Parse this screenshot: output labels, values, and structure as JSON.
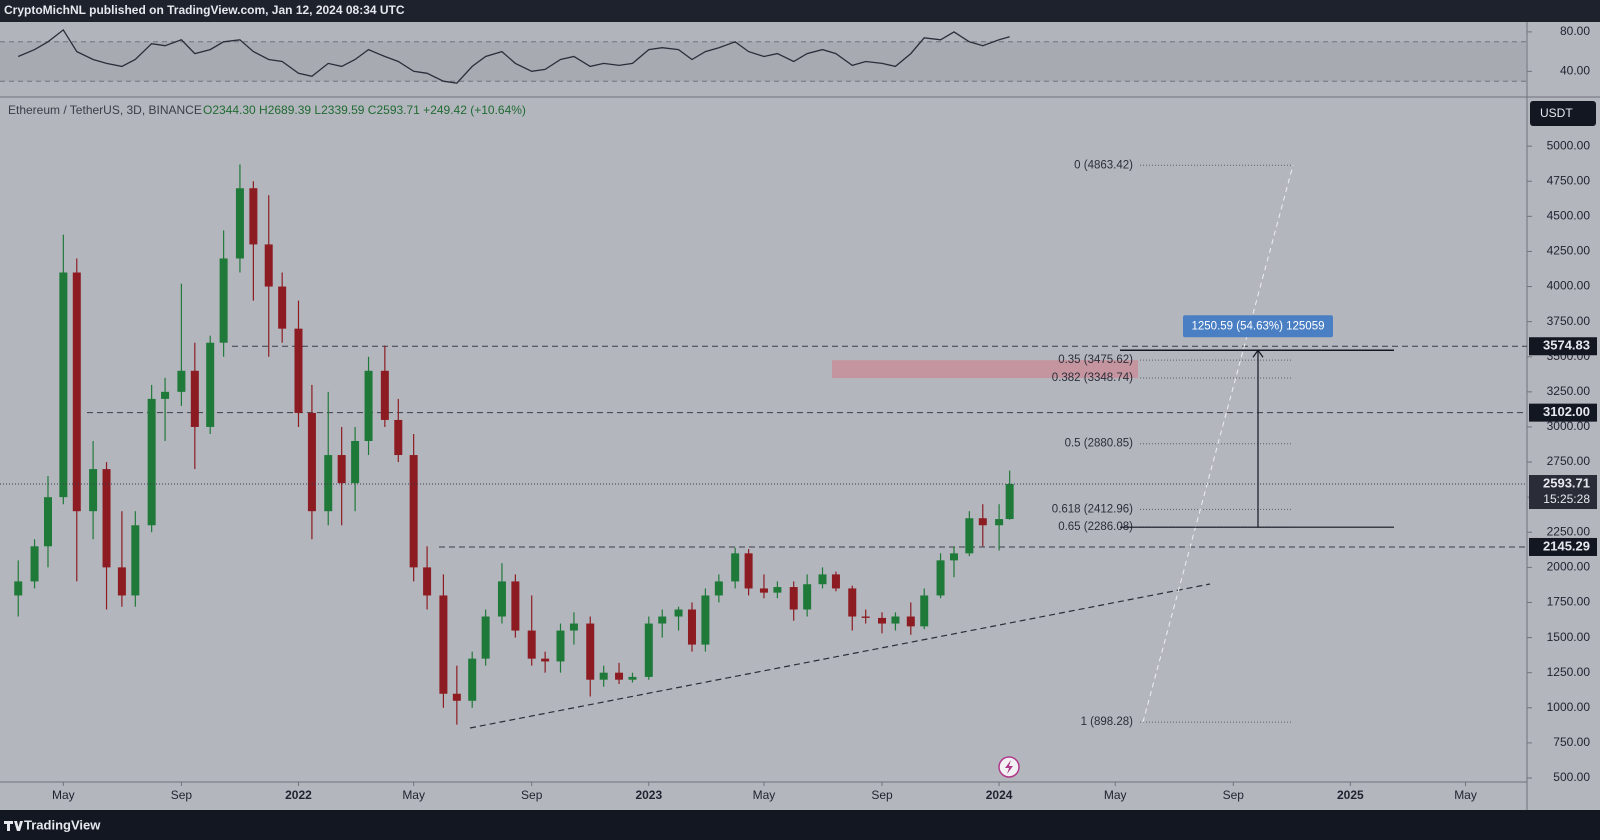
{
  "header": {
    "publisher": "CryptoMichNL published on TradingView.com, Jan 12, 2024 08:34 UTC",
    "symbol": "Ethereum / TetherUS, 3D, BINANCE",
    "ohlc_text": "O2344.30 H2689.39 L2339.59 C2593.71 +249.42 (+10.64%)",
    "currency": "USDT"
  },
  "footer": {
    "brand": "TradingView"
  },
  "chart_data": [
    {
      "type": "candlestick",
      "up_color": "#1f7a3a",
      "down_color": "#8c1c22",
      "x": [
        "2021-03-15",
        "2021-04-01",
        "2021-04-15",
        "2021-05-01",
        "2021-05-15",
        "2021-06-01",
        "2021-06-15",
        "2021-07-01",
        "2021-07-15",
        "2021-08-01",
        "2021-08-15",
        "2021-09-01",
        "2021-09-15",
        "2021-10-01",
        "2021-10-15",
        "2021-11-01",
        "2021-11-15",
        "2021-12-01",
        "2021-12-15",
        "2022-01-01",
        "2022-01-15",
        "2022-02-01",
        "2022-02-15",
        "2022-03-01",
        "2022-03-15",
        "2022-04-01",
        "2022-04-15",
        "2022-05-01",
        "2022-05-15",
        "2022-06-01",
        "2022-06-15",
        "2022-07-01",
        "2022-07-15",
        "2022-08-01",
        "2022-08-15",
        "2022-09-01",
        "2022-09-15",
        "2022-10-01",
        "2022-10-15",
        "2022-11-01",
        "2022-11-15",
        "2022-12-01",
        "2022-12-15",
        "2023-01-01",
        "2023-01-15",
        "2023-02-01",
        "2023-02-15",
        "2023-03-01",
        "2023-03-15",
        "2023-04-01",
        "2023-04-15",
        "2023-05-01",
        "2023-05-15",
        "2023-06-01",
        "2023-06-15",
        "2023-07-01",
        "2023-07-15",
        "2023-08-01",
        "2023-08-15",
        "2023-09-01",
        "2023-09-15",
        "2023-10-01",
        "2023-10-15",
        "2023-11-01",
        "2023-11-15",
        "2023-12-01",
        "2023-12-15",
        "2024-01-01",
        "2024-01-12"
      ],
      "open": [
        1800,
        1900,
        2150,
        2500,
        4100,
        2400,
        2700,
        2000,
        1800,
        2300,
        3200,
        3250,
        3400,
        3000,
        3600,
        4200,
        4700,
        4300,
        4000,
        3700,
        3100,
        2400,
        2800,
        2600,
        2900,
        3400,
        3050,
        2800,
        2000,
        1800,
        1100,
        1050,
        1350,
        1650,
        1900,
        1550,
        1350,
        1330,
        1550,
        1600,
        1200,
        1250,
        1200,
        1220,
        1600,
        1650,
        1700,
        1450,
        1800,
        1900,
        2100,
        1850,
        1820,
        1860,
        1700,
        1880,
        1950,
        1850,
        1650,
        1640,
        1600,
        1650,
        1580,
        1800,
        2050,
        2100,
        2350,
        2300,
        2344.3
      ],
      "high": [
        2050,
        2200,
        2650,
        4370,
        4200,
        2900,
        2750,
        2400,
        2400,
        3300,
        3350,
        4020,
        3600,
        3650,
        4400,
        4870,
        4750,
        4650,
        4100,
        3900,
        3300,
        3250,
        3000,
        3000,
        3500,
        3580,
        3200,
        2950,
        2150,
        1950,
        1300,
        1400,
        1700,
        2030,
        1950,
        1800,
        1400,
        1600,
        1680,
        1650,
        1300,
        1320,
        1250,
        1650,
        1700,
        1720,
        1750,
        1850,
        1950,
        2140,
        2130,
        1950,
        1900,
        1900,
        1950,
        2000,
        1970,
        1870,
        1700,
        1680,
        1680,
        1750,
        1850,
        2100,
        2150,
        2400,
        2450,
        2450,
        2689.39
      ],
      "low": [
        1650,
        1850,
        2000,
        2450,
        1900,
        2200,
        1700,
        1720,
        1720,
        2250,
        2900,
        3150,
        2700,
        2950,
        3500,
        4100,
        3900,
        3500,
        3600,
        3000,
        2200,
        2300,
        2300,
        2400,
        2800,
        3000,
        2750,
        1900,
        1700,
        1000,
        880,
        1000,
        1300,
        1600,
        1500,
        1300,
        1250,
        1250,
        1450,
        1080,
        1150,
        1170,
        1180,
        1200,
        1500,
        1550,
        1400,
        1400,
        1750,
        1850,
        1800,
        1780,
        1780,
        1620,
        1650,
        1850,
        1830,
        1550,
        1600,
        1530,
        1550,
        1520,
        1560,
        1780,
        1930,
        2080,
        2150,
        2120,
        2339.59
      ],
      "close": [
        1900,
        2150,
        2500,
        4100,
        2400,
        2700,
        2000,
        1800,
        2300,
        3200,
        3250,
        3400,
        3000,
        3600,
        4200,
        4700,
        4300,
        4000,
        3700,
        3100,
        2400,
        2800,
        2600,
        2900,
        3400,
        3050,
        2800,
        2000,
        1800,
        1100,
        1050,
        1350,
        1650,
        1900,
        1550,
        1350,
        1330,
        1550,
        1600,
        1200,
        1250,
        1200,
        1220,
        1600,
        1650,
        1700,
        1450,
        1800,
        1900,
        2100,
        1850,
        1820,
        1860,
        1700,
        1880,
        1950,
        1850,
        1650,
        1640,
        1600,
        1650,
        1580,
        1800,
        2050,
        2100,
        2350,
        2300,
        2344,
        2593.71
      ],
      "xlim": [
        "2021-02-24",
        "2025-07-03"
      ],
      "xticks": [
        {
          "value": "2021-05-01",
          "label": "May"
        },
        {
          "value": "2021-09-01",
          "label": "Sep"
        },
        {
          "value": "2022-01-01",
          "label": "2022"
        },
        {
          "value": "2022-05-01",
          "label": "May"
        },
        {
          "value": "2022-09-01",
          "label": "Sep"
        },
        {
          "value": "2023-01-01",
          "label": "2023"
        },
        {
          "value": "2023-05-01",
          "label": "May"
        },
        {
          "value": "2023-09-01",
          "label": "Sep"
        },
        {
          "value": "2024-01-01",
          "label": "2024"
        },
        {
          "value": "2024-05-01",
          "label": "May"
        },
        {
          "value": "2024-09-01",
          "label": "Sep"
        },
        {
          "value": "2025-01-01",
          "label": "2025"
        },
        {
          "value": "2025-05-01",
          "label": "May"
        }
      ],
      "ylim": [
        500,
        5300
      ],
      "yticks": [
        {
          "value": 500,
          "label": "500.00"
        },
        {
          "value": 750,
          "label": "750.00"
        },
        {
          "value": 1000,
          "label": "1000.00"
        },
        {
          "value": 1250,
          "label": "1250.00"
        },
        {
          "value": 1500,
          "label": "1500.00"
        },
        {
          "value": 1750,
          "label": "1750.00"
        },
        {
          "value": 2000,
          "label": "2000.00"
        },
        {
          "value": 2250,
          "label": "2250.00"
        },
        {
          "value": 2500,
          "label": "2500.00"
        },
        {
          "value": 2750,
          "label": "2750.00"
        },
        {
          "value": 3000,
          "label": "3000.00"
        },
        {
          "value": 3250,
          "label": "3250.00"
        },
        {
          "value": 3500,
          "label": "3500.00"
        },
        {
          "value": 3750,
          "label": "3750.00"
        },
        {
          "value": 4000,
          "label": "4000.00"
        },
        {
          "value": 4250,
          "label": "4250.00"
        },
        {
          "value": 4500,
          "label": "4500.00"
        },
        {
          "value": 4750,
          "label": "4750.00"
        },
        {
          "value": 5000,
          "label": "5000.00"
        }
      ],
      "levels": [
        3574.83,
        {
          "value": 3102,
          "label": "3102.00"
        },
        2145.29
      ],
      "last_price": 2593.71,
      "countdown": "15:25:28",
      "fib_levels": [
        {
          "value": 4863.42,
          "label": "0 (4863.42)"
        },
        {
          "value": 3475.62,
          "label": "0.35 (3475.62)"
        },
        {
          "value": 3348.74,
          "label": "0.382 (3348.74)"
        },
        {
          "value": 2880.85,
          "label": "0.5 (2880.85)"
        },
        {
          "value": 2412.96,
          "label": "0.618 (2412.96)"
        },
        {
          "value": 2286.08,
          "label": "0.65 (2286.08)"
        },
        {
          "value": 898.28,
          "label": "1 (898.28)"
        }
      ],
      "measure_label": "1250.59 (54.63%) 125059"
    },
    {
      "type": "line",
      "color": "#2b2e3a",
      "x": [
        "2021-03-15",
        "2021-04-01",
        "2021-04-15",
        "2021-05-01",
        "2021-05-15",
        "2021-06-01",
        "2021-06-15",
        "2021-07-01",
        "2021-07-15",
        "2021-08-01",
        "2021-08-15",
        "2021-09-01",
        "2021-09-15",
        "2021-10-01",
        "2021-10-15",
        "2021-11-01",
        "2021-11-15",
        "2021-12-01",
        "2021-12-15",
        "2022-01-01",
        "2022-01-15",
        "2022-02-01",
        "2022-02-15",
        "2022-03-01",
        "2022-03-15",
        "2022-04-01",
        "2022-04-15",
        "2022-05-01",
        "2022-05-15",
        "2022-06-01",
        "2022-06-15",
        "2022-07-01",
        "2022-07-15",
        "2022-08-01",
        "2022-08-15",
        "2022-09-01",
        "2022-09-15",
        "2022-10-01",
        "2022-10-15",
        "2022-11-01",
        "2022-11-15",
        "2022-12-01",
        "2022-12-15",
        "2023-01-01",
        "2023-01-15",
        "2023-02-01",
        "2023-02-15",
        "2023-03-01",
        "2023-03-15",
        "2023-04-01",
        "2023-04-15",
        "2023-05-01",
        "2023-05-15",
        "2023-06-01",
        "2023-06-15",
        "2023-07-01",
        "2023-07-15",
        "2023-08-01",
        "2023-08-15",
        "2023-09-01",
        "2023-09-15",
        "2023-10-01",
        "2023-10-15",
        "2023-11-01",
        "2023-11-15",
        "2023-12-01",
        "2023-12-15",
        "2024-01-01",
        "2024-01-12"
      ],
      "values": [
        55,
        62,
        70,
        82,
        60,
        52,
        48,
        45,
        52,
        68,
        66,
        72,
        58,
        62,
        70,
        72,
        60,
        52,
        50,
        38,
        35,
        48,
        45,
        52,
        62,
        55,
        50,
        40,
        38,
        30,
        28,
        45,
        55,
        60,
        48,
        40,
        42,
        52,
        55,
        45,
        48,
        46,
        48,
        62,
        64,
        62,
        52,
        60,
        64,
        70,
        60,
        55,
        58,
        50,
        58,
        62,
        58,
        46,
        50,
        48,
        45,
        58,
        74,
        72,
        80,
        70,
        66,
        72,
        75
      ],
      "xlim": [
        "2021-02-24",
        "2025-07-03"
      ],
      "ylim": [
        16,
        88
      ],
      "yticks": [
        {
          "value": 40,
          "label": "40.00"
        },
        {
          "value": 80,
          "label": "80.00"
        }
      ],
      "band": [
        30,
        70
      ]
    }
  ]
}
